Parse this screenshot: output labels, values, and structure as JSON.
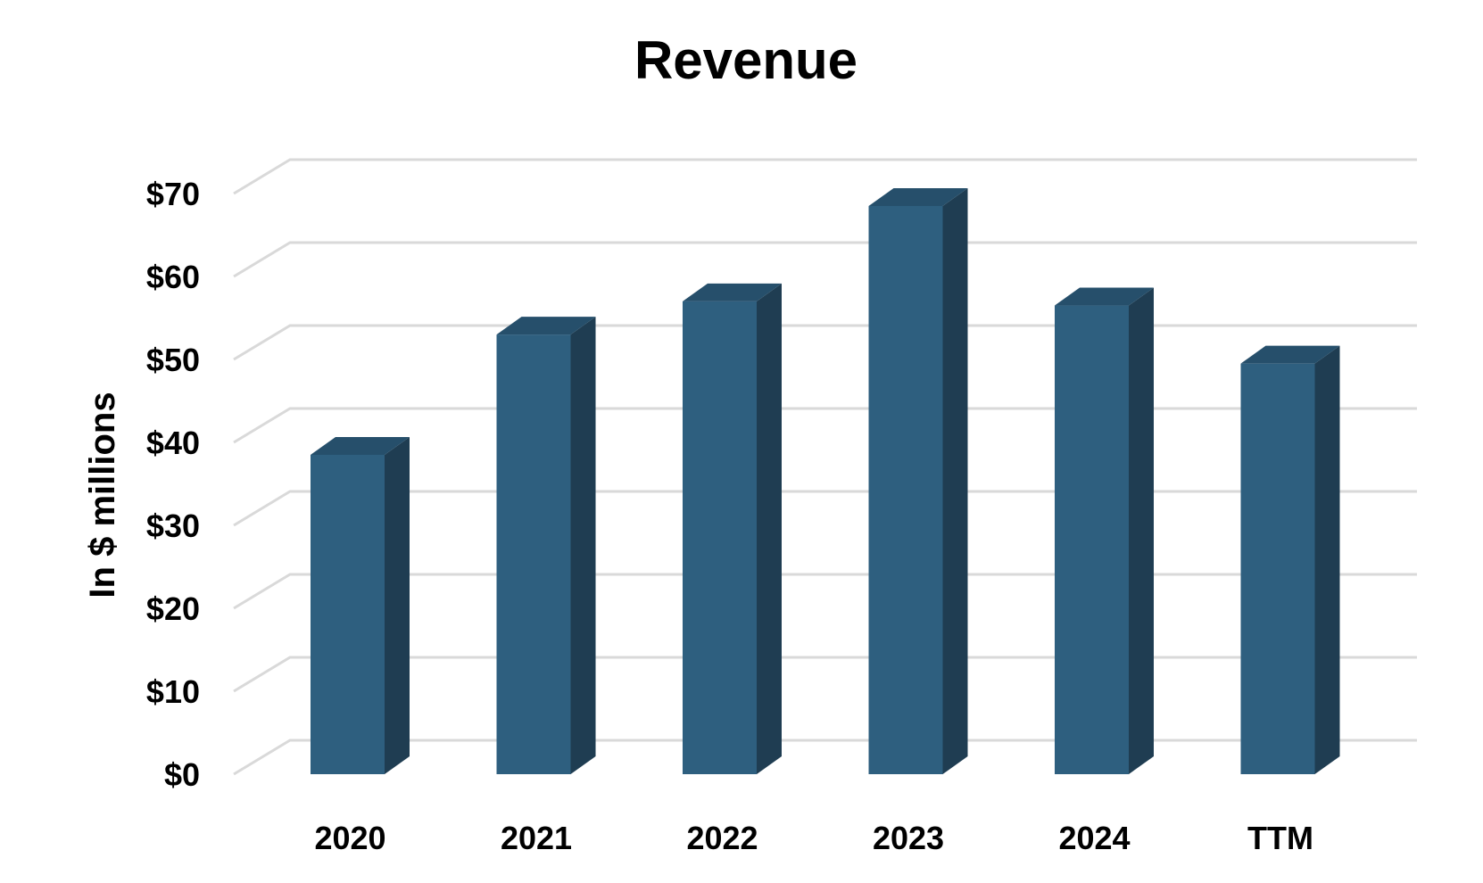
{
  "chart_data": {
    "type": "bar",
    "title": "Revenue",
    "xlabel": "",
    "ylabel": "In $ millions",
    "categories": [
      "2020",
      "2021",
      "2022",
      "2023",
      "2024",
      "TTM"
    ],
    "series": [
      {
        "values": [
          38.5,
          53,
          57,
          68.5,
          56.5,
          49.5
        ]
      }
    ],
    "ylim": [
      0,
      70
    ],
    "yticks": [
      0,
      10,
      20,
      30,
      40,
      50,
      60,
      70
    ],
    "ytick_labels": [
      "$0",
      "$10",
      "$20",
      "$30",
      "$40",
      "$50",
      "$60",
      "$70"
    ],
    "grid": true,
    "legend": "none",
    "style": "3d-column",
    "colors": {
      "bar_front": "#2e5f7f",
      "bar_side": "#1f3d52",
      "bar_top": "#264f6b",
      "grid": "#d9d9d9"
    }
  }
}
